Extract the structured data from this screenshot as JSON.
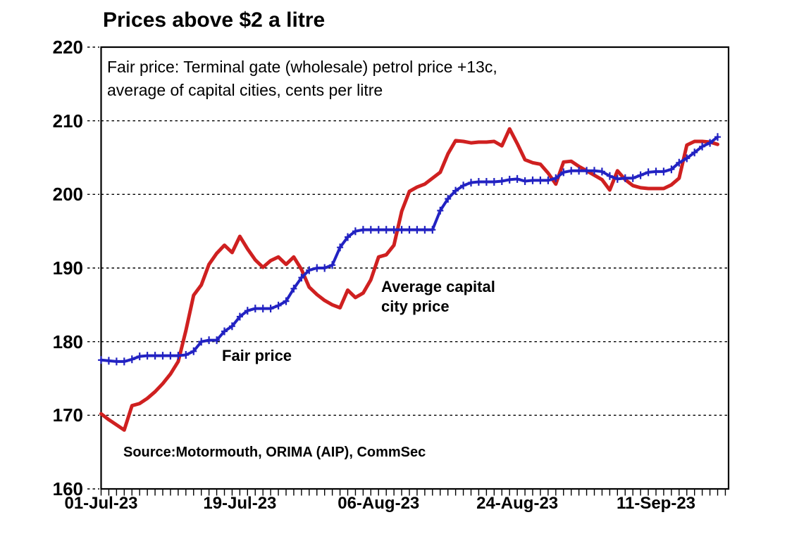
{
  "page": {
    "background": "#ffffff"
  },
  "header": {
    "title": "Prices above $2 a litre"
  },
  "subtitle": {
    "line1": "Fair price: Terminal gate (wholesale) petrol price +13c,",
    "line2": "average of capital cities, cents per litre"
  },
  "annotations": {
    "fair_price_label": "Fair price",
    "avg_price_label_line1": "Average capital",
    "avg_price_label_line2": "city price",
    "source_text": "Source:Motormouth,  ORIMA (AIP), CommSec"
  },
  "colors": {
    "average_capital_city_series": "#cf2020",
    "fair_price_series": "#2222c2",
    "axis": "#000000",
    "background": "#ffffff"
  },
  "chart_data": {
    "type": "line",
    "title": "Prices above $2 a litre",
    "subtitle": "Fair price: Terminal gate (wholesale) petrol price +13c, average of capital cities, cents per litre",
    "ylabel": "cents per litre",
    "ylim": [
      160,
      220
    ],
    "yticks": [
      160,
      170,
      180,
      190,
      200,
      210,
      220
    ],
    "grid": "horizontal-dashed",
    "legend_position": "inline-annotations",
    "n_points": 81,
    "x_tick_labels": [
      "01-Jul-23",
      "19-Jul-23",
      "06-Aug-23",
      "24-Aug-23",
      "11-Sep-23"
    ],
    "x_tick_day_index": [
      0,
      18,
      36,
      54,
      72
    ],
    "x_minor_tick_every_days": 1,
    "series": [
      {
        "name": "Average capital city price",
        "color": "#cf2020",
        "marker": "none",
        "line_width": 5,
        "values": [
          170.2,
          169.4,
          168.7,
          168.0,
          171.3,
          171.6,
          172.3,
          173.2,
          174.3,
          175.6,
          177.3,
          181.5,
          186.3,
          187.7,
          190.5,
          192.0,
          193.1,
          192.1,
          194.3,
          192.6,
          191.1,
          190.1,
          191.0,
          191.5,
          190.5,
          191.5,
          189.8,
          187.4,
          186.4,
          185.6,
          185.0,
          184.6,
          187.0,
          186.0,
          186.6,
          188.4,
          191.5,
          191.8,
          193.1,
          197.7,
          200.4,
          201.0,
          201.4,
          202.2,
          203.0,
          205.5,
          207.3,
          207.2,
          207.0,
          207.1,
          207.1,
          207.2,
          206.6,
          208.9,
          206.9,
          204.7,
          204.3,
          204.1,
          202.9,
          201.4,
          204.4,
          204.5,
          203.8,
          203.2,
          202.6,
          202.0,
          200.6,
          203.2,
          202.0,
          201.2,
          200.9,
          200.8,
          200.8,
          200.8,
          201.3,
          202.2,
          206.7,
          207.2,
          207.2,
          207.1,
          206.8
        ]
      },
      {
        "name": "Fair price",
        "color": "#2222c2",
        "marker": "plus",
        "line_width": 4,
        "values": [
          177.5,
          177.4,
          177.3,
          177.3,
          177.6,
          178.0,
          178.1,
          178.1,
          178.1,
          178.1,
          178.1,
          178.2,
          178.7,
          180.0,
          180.2,
          180.2,
          181.4,
          182.1,
          183.4,
          184.2,
          184.5,
          184.5,
          184.5,
          184.9,
          185.5,
          187.2,
          188.7,
          189.7,
          190.0,
          190.0,
          190.4,
          192.8,
          194.2,
          195.0,
          195.2,
          195.2,
          195.2,
          195.2,
          195.2,
          195.2,
          195.2,
          195.2,
          195.2,
          195.2,
          197.8,
          199.4,
          200.5,
          201.2,
          201.6,
          201.7,
          201.7,
          201.7,
          201.8,
          202.0,
          202.1,
          201.8,
          201.9,
          201.9,
          201.9,
          202.2,
          203.0,
          203.2,
          203.2,
          203.2,
          203.2,
          203.1,
          202.5,
          202.1,
          202.2,
          202.2,
          202.6,
          203.0,
          203.1,
          203.1,
          203.4,
          204.3,
          204.9,
          205.7,
          206.5,
          207.0,
          207.8
        ]
      }
    ]
  }
}
